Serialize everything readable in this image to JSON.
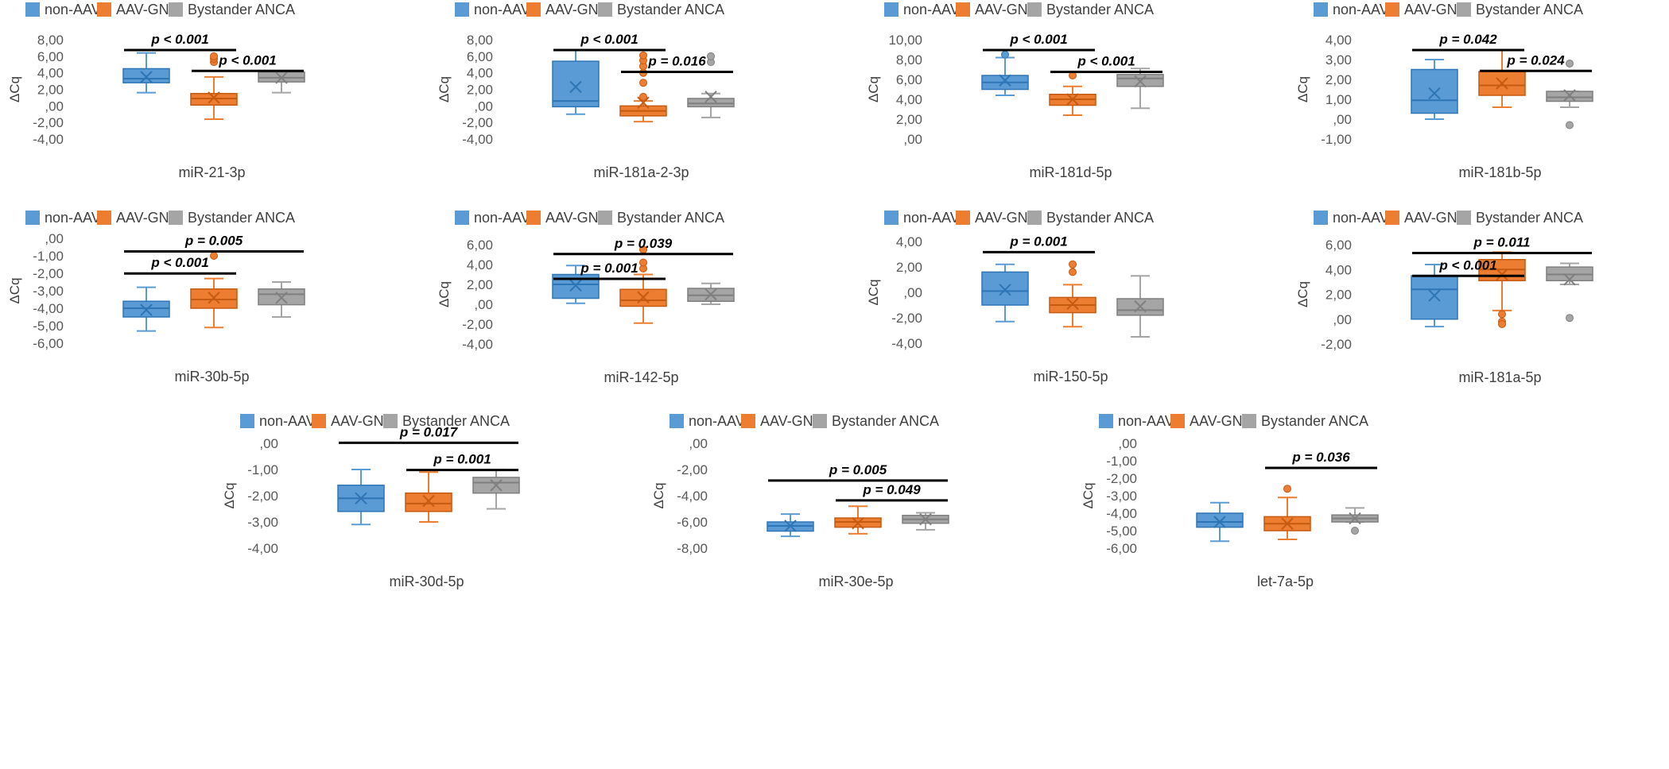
{
  "colors": {
    "non_aav": "#5B9BD5",
    "aav_gn": "#ED7D31",
    "bystander": "#A5A5A5"
  },
  "legend_icons": [
    "legend-swatch-blue",
    "legend-swatch-orange",
    "legend-swatch-gray"
  ],
  "chart_data": [
    {
      "type": "box",
      "title": "miR-21-3p",
      "xlabel": "miR-21-3p",
      "ylabel": "ΔCq",
      "ylim": [
        -4,
        8
      ],
      "ticks": [
        8,
        6,
        4,
        2,
        0,
        -2,
        -4
      ],
      "tick_labels": [
        "8,00",
        "6,00",
        "4,00",
        "2,00",
        ",00",
        "-2,00",
        "-4,00"
      ],
      "legend": [
        "non-AAV",
        "AAV-GN",
        "Bystander ANCA"
      ],
      "series": [
        {
          "name": "non-AAV",
          "min": 1.6,
          "q1": 2.8,
          "median": 3.3,
          "q3": 4.5,
          "max": 6.4,
          "mean": 3.5,
          "outliers": []
        },
        {
          "name": "AAV-GN",
          "min": -1.6,
          "q1": 0.1,
          "median": 0.9,
          "q3": 1.5,
          "max": 3.5,
          "mean": 1.0,
          "outliers": [
            5.3,
            5.7,
            6.0
          ]
        },
        {
          "name": "Bystander ANCA",
          "min": 1.6,
          "q1": 2.9,
          "median": 3.4,
          "q3": 4.1,
          "max": 4.2,
          "mean": 3.4,
          "outliers": []
        }
      ],
      "brackets": [
        {
          "from": 0,
          "to": 1,
          "label": "p < 0.001",
          "level": 0.88
        },
        {
          "from": 1,
          "to": 2,
          "label": "p < 0.001",
          "level": 0.67
        }
      ]
    },
    {
      "type": "box",
      "title": "miR-181a-2-3p",
      "xlabel": "miR-181a-2-3p",
      "ylabel": "ΔCq",
      "ylim": [
        -4,
        8
      ],
      "ticks": [
        8,
        6,
        4,
        2,
        0,
        -2,
        -4
      ],
      "tick_labels": [
        "8,00",
        "6,00",
        "4,00",
        "2,00",
        ",00",
        "-2,00",
        "-4,00"
      ],
      "legend": [
        "non-AAV",
        "AAV-GN",
        "Bystander ANCA"
      ],
      "series": [
        {
          "name": "non-AAV",
          "min": -1.0,
          "q1": -0.1,
          "median": 0.6,
          "q3": 5.4,
          "max": 6.7,
          "mean": 2.3,
          "outliers": []
        },
        {
          "name": "AAV-GN",
          "min": -1.9,
          "q1": -1.2,
          "median": -0.6,
          "q3": 0.0,
          "max": 0.6,
          "mean": 0.4,
          "outliers": [
            1.1,
            2.8,
            4.0,
            4.8,
            5.5,
            6.1
          ]
        },
        {
          "name": "Bystander ANCA",
          "min": -1.4,
          "q1": -0.1,
          "median": 0.3,
          "q3": 0.9,
          "max": 1.5,
          "mean": 1.1,
          "outliers": [
            5.3,
            6.0
          ]
        }
      ],
      "brackets": [
        {
          "from": 0,
          "to": 1,
          "label": "p < 0.001",
          "level": 0.88
        },
        {
          "from": 1,
          "to": 2,
          "label": "p = 0.016",
          "level": 0.66
        }
      ]
    },
    {
      "type": "box",
      "title": "miR-181d-5p",
      "xlabel": "miR-181d-5p",
      "ylabel": "ΔCq",
      "ylim": [
        0,
        10
      ],
      "ticks": [
        10,
        8,
        6,
        4,
        2,
        0
      ],
      "tick_labels": [
        "10,00",
        "8,00",
        "6,00",
        "4,00",
        "2,00",
        ",00"
      ],
      "legend": [
        "non-AAV",
        "AAV-GN",
        "Bystander ANCA"
      ],
      "series": [
        {
          "name": "non-AAV",
          "min": 4.4,
          "q1": 5.0,
          "median": 5.7,
          "q3": 6.4,
          "max": 8.2,
          "mean": 5.9,
          "outliers": [
            8.5
          ]
        },
        {
          "name": "AAV-GN",
          "min": 2.4,
          "q1": 3.4,
          "median": 4.0,
          "q3": 4.5,
          "max": 5.3,
          "mean": 4.0,
          "outliers": [
            6.4
          ]
        },
        {
          "name": "Bystander ANCA",
          "min": 3.1,
          "q1": 5.3,
          "median": 6.1,
          "q3": 6.5,
          "max": 7.1,
          "mean": 5.8,
          "outliers": []
        }
      ],
      "brackets": [
        {
          "from": 0,
          "to": 1,
          "label": "p < 0.001",
          "level": 0.88
        },
        {
          "from": 1,
          "to": 2,
          "label": "p < 0.001",
          "level": 0.66
        }
      ]
    },
    {
      "type": "box",
      "title": "miR-181b-5p",
      "xlabel": "miR-181b-5p",
      "ylabel": "ΔCq",
      "ylim": [
        -1,
        4
      ],
      "ticks": [
        4,
        3,
        2,
        1,
        0,
        -1
      ],
      "tick_labels": [
        "4,00",
        "3,00",
        "2,00",
        "1,00",
        ",00",
        "-1,00"
      ],
      "legend": [
        "non-AAV",
        "AAV-GN",
        "Bystander ANCA"
      ],
      "series": [
        {
          "name": "non-AAV",
          "min": 0.0,
          "q1": 0.3,
          "median": 0.95,
          "q3": 2.5,
          "max": 3.0,
          "mean": 1.3,
          "outliers": []
        },
        {
          "name": "AAV-GN",
          "min": 0.6,
          "q1": 1.2,
          "median": 1.7,
          "q3": 2.4,
          "max": 3.5,
          "mean": 1.8,
          "outliers": []
        },
        {
          "name": "Bystander ANCA",
          "min": 0.6,
          "q1": 0.9,
          "median": 1.1,
          "q3": 1.4,
          "max": 1.4,
          "mean": 1.2,
          "outliers": [
            2.8,
            -0.3
          ]
        }
      ],
      "brackets": [
        {
          "from": 0,
          "to": 1,
          "label": "p = 0.042",
          "level": 0.88
        },
        {
          "from": 1,
          "to": 2,
          "label": "p = 0.024",
          "level": 0.67
        }
      ]
    },
    {
      "type": "box",
      "title": "miR-30b-5p",
      "xlabel": "miR-30b-5p",
      "ylabel": "ΔCq",
      "ylim": [
        -6,
        0
      ],
      "ticks": [
        0,
        -1,
        -2,
        -3,
        -4,
        -5,
        -6
      ],
      "tick_labels": [
        ",00",
        "-1,00",
        "-2,00",
        "-3,00",
        "-4,00",
        "-5,00",
        "-6,00"
      ],
      "legend": [
        "non-AAV",
        "AAV-GN",
        "Bystander ANCA"
      ],
      "series": [
        {
          "name": "non-AAV",
          "min": -5.3,
          "q1": -4.5,
          "median": -4.0,
          "q3": -3.6,
          "max": -2.8,
          "mean": -4.1,
          "outliers": []
        },
        {
          "name": "AAV-GN",
          "min": -5.1,
          "q1": -4.0,
          "median": -3.5,
          "q3": -2.9,
          "max": -2.3,
          "mean": -3.4,
          "outliers": [
            -1.0
          ]
        },
        {
          "name": "Bystander ANCA",
          "min": -4.5,
          "q1": -3.8,
          "median": -3.2,
          "q3": -2.9,
          "max": -2.5,
          "mean": -3.4,
          "outliers": []
        }
      ],
      "brackets": [
        {
          "from": 0,
          "to": 2,
          "label": "p = 0.005",
          "level": 0.86
        },
        {
          "from": 0,
          "to": 1,
          "label": "p < 0.001",
          "level": 0.65
        }
      ]
    },
    {
      "type": "box",
      "title": "miR-142-5p",
      "xlabel": "miR-142-5p",
      "ylabel": "ΔCq",
      "ylim": [
        -4,
        6
      ],
      "ticks": [
        6,
        4,
        2,
        0,
        -2,
        -4
      ],
      "tick_labels": [
        "6,00",
        "4,00",
        "2,00",
        ",00",
        "-2,00",
        "-4,00"
      ],
      "legend": [
        "non-AAV",
        "AAV-GN",
        "Bystander ANCA"
      ],
      "series": [
        {
          "name": "non-AAV",
          "min": 0.1,
          "q1": 0.6,
          "median": 2.0,
          "q3": 3.0,
          "max": 3.9,
          "mean": 1.9,
          "outliers": []
        },
        {
          "name": "AAV-GN",
          "min": -1.9,
          "q1": -0.2,
          "median": 0.4,
          "q3": 1.5,
          "max": 3.0,
          "mean": 0.7,
          "outliers": [
            3.6,
            4.2,
            5.5
          ]
        },
        {
          "name": "Bystander ANCA",
          "min": 0.0,
          "q1": 0.3,
          "median": 0.9,
          "q3": 1.6,
          "max": 2.1,
          "mean": 1.0,
          "outliers": []
        }
      ],
      "brackets": [
        {
          "from": 0,
          "to": 2,
          "label": "p = 0.039",
          "level": 0.89
        },
        {
          "from": 0,
          "to": 1,
          "label": "p = 0.001",
          "level": 0.64
        }
      ]
    },
    {
      "type": "box",
      "title": "miR-150-5p",
      "xlabel": "miR-150-5p",
      "ylabel": "ΔCq",
      "ylim": [
        -4,
        4
      ],
      "ticks": [
        4,
        2,
        0,
        -2,
        -4
      ],
      "tick_labels": [
        "4,00",
        "2,00",
        ",00",
        "-2,00",
        "-4,00"
      ],
      "legend": [
        "non-AAV",
        "AAV-GN",
        "Bystander ANCA"
      ],
      "series": [
        {
          "name": "non-AAV",
          "min": -2.3,
          "q1": -1.0,
          "median": 0.1,
          "q3": 1.6,
          "max": 2.2,
          "mean": 0.2,
          "outliers": []
        },
        {
          "name": "AAV-GN",
          "min": -2.7,
          "q1": -1.6,
          "median": -1.0,
          "q3": -0.4,
          "max": 0.6,
          "mean": -0.9,
          "outliers": [
            1.6,
            2.2
          ]
        },
        {
          "name": "Bystander ANCA",
          "min": -3.5,
          "q1": -1.8,
          "median": -1.4,
          "q3": -0.5,
          "max": 1.3,
          "mean": -1.1,
          "outliers": []
        }
      ],
      "brackets": [
        {
          "from": 0,
          "to": 1,
          "label": "p = 0.001",
          "level": 0.88
        }
      ]
    },
    {
      "type": "box",
      "title": "miR-181a-5p",
      "xlabel": "miR-181a-5p",
      "ylabel": "ΔCq",
      "ylim": [
        -2,
        6
      ],
      "ticks": [
        6,
        4,
        2,
        0,
        -2
      ],
      "tick_labels": [
        "6,00",
        "4,00",
        "2,00",
        ",00",
        "-2,00"
      ],
      "legend": [
        "non-AAV",
        "AAV-GN",
        "Bystander ANCA"
      ],
      "series": [
        {
          "name": "non-AAV",
          "min": -0.6,
          "q1": 0.0,
          "median": 2.4,
          "q3": 3.5,
          "max": 4.4,
          "mean": 1.9,
          "outliers": []
        },
        {
          "name": "AAV-GN",
          "min": 0.7,
          "q1": 3.1,
          "median": 4.0,
          "q3": 4.8,
          "max": 5.4,
          "mean": 3.6,
          "outliers": [
            0.4,
            -0.2,
            -0.4
          ]
        },
        {
          "name": "Bystander ANCA",
          "min": 2.8,
          "q1": 3.1,
          "median": 3.6,
          "q3": 4.2,
          "max": 4.5,
          "mean": 3.2,
          "outliers": [
            0.1
          ]
        }
      ],
      "brackets": [
        {
          "from": 0,
          "to": 2,
          "label": "p = 0.011",
          "level": 0.9
        },
        {
          "from": 0,
          "to": 1,
          "label": "p < 0.001",
          "level": 0.67
        }
      ]
    },
    {
      "type": "box",
      "title": "miR-30d-5p",
      "xlabel": "miR-30d-5p",
      "ylabel": "ΔCq",
      "ylim": [
        -4,
        0
      ],
      "ticks": [
        0,
        -1,
        -2,
        -3,
        -4
      ],
      "tick_labels": [
        ",00",
        "-1,00",
        "-2,00",
        "-3,00",
        "-4,00"
      ],
      "legend": [
        "non-AAV",
        "AAV-GN",
        "Bystander ANCA"
      ],
      "series": [
        {
          "name": "non-AAV",
          "min": -3.1,
          "q1": -2.6,
          "median": -2.1,
          "q3": -1.6,
          "max": -1.0,
          "mean": -2.1,
          "outliers": []
        },
        {
          "name": "AAV-GN",
          "min": -3.0,
          "q1": -2.6,
          "median": -2.3,
          "q3": -1.9,
          "max": -1.1,
          "mean": -2.2,
          "outliers": []
        },
        {
          "name": "Bystander ANCA",
          "min": -2.5,
          "q1": -1.9,
          "median": -1.5,
          "q3": -1.3,
          "max": -1.0,
          "mean": -1.6,
          "outliers": []
        }
      ],
      "brackets": [
        {
          "from": 0,
          "to": 2,
          "label": "p = 0.017",
          "level": 0.99
        },
        {
          "from": 1,
          "to": 2,
          "label": "p = 0.001",
          "level": 0.73
        }
      ]
    },
    {
      "type": "box",
      "title": "miR-30e-5p",
      "xlabel": "miR-30e-5p",
      "ylabel": "ΔCq",
      "ylim": [
        -8,
        0
      ],
      "ticks": [
        0,
        -2,
        -4,
        -6,
        -8
      ],
      "tick_labels": [
        ",00",
        "-2,00",
        "-4,00",
        "-6,00",
        "-8,00"
      ],
      "legend": [
        "non-AAV",
        "AAV-GN",
        "Bystander ANCA"
      ],
      "series": [
        {
          "name": "non-AAV",
          "min": -7.1,
          "q1": -6.7,
          "median": -6.3,
          "q3": -6.0,
          "max": -5.4,
          "mean": -6.3,
          "outliers": []
        },
        {
          "name": "AAV-GN",
          "min": -6.9,
          "q1": -6.4,
          "median": -6.0,
          "q3": -5.7,
          "max": -4.8,
          "mean": -6.1,
          "outliers": []
        },
        {
          "name": "Bystander ANCA",
          "min": -6.6,
          "q1": -6.1,
          "median": -5.8,
          "q3": -5.5,
          "max": -5.3,
          "mean": -5.8,
          "outliers": []
        }
      ],
      "brackets": [
        {
          "from": 0,
          "to": 2,
          "label": "p = 0.005",
          "level": 0.63
        },
        {
          "from": 1,
          "to": 2,
          "label": "p = 0.049",
          "level": 0.44
        }
      ]
    },
    {
      "type": "box",
      "title": "let-7a-5p",
      "xlabel": "let-7a-5p",
      "ylabel": "ΔCq",
      "ylim": [
        -6,
        0
      ],
      "ticks": [
        0,
        -1,
        -2,
        -3,
        -4,
        -5,
        -6
      ],
      "tick_labels": [
        ",00",
        "-1,00",
        "-2,00",
        "-3,00",
        "-4,00",
        "-5,00",
        "-6,00"
      ],
      "legend": [
        "non-AAV",
        "AAV-GN",
        "Bystander ANCA"
      ],
      "series": [
        {
          "name": "non-AAV",
          "min": -5.6,
          "q1": -4.8,
          "median": -4.5,
          "q3": -4.0,
          "max": -3.4,
          "mean": -4.5,
          "outliers": []
        },
        {
          "name": "AAV-GN",
          "min": -5.5,
          "q1": -5.0,
          "median": -4.6,
          "q3": -4.2,
          "max": -3.1,
          "mean": -4.6,
          "outliers": [
            -2.6
          ]
        },
        {
          "name": "Bystander ANCA",
          "min": -4.5,
          "q1": -4.5,
          "median": -4.3,
          "q3": -4.1,
          "max": -3.7,
          "mean": -4.3,
          "outliers": [
            -5.0
          ]
        }
      ],
      "brackets": [
        {
          "from": 1,
          "to": 2,
          "label": "p = 0.036",
          "level": 0.75
        }
      ]
    }
  ]
}
